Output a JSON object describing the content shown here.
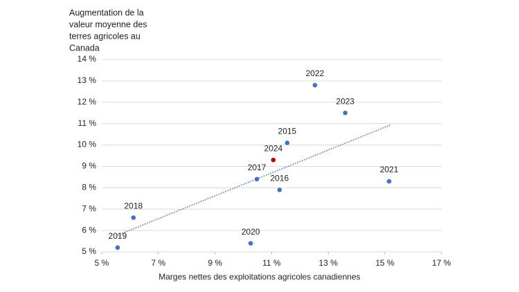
{
  "chart_data": {
    "type": "scatter",
    "ylabel": [
      "Augmentation de la",
      "valeur moyenne des",
      "terres agricoles au",
      "Canada"
    ],
    "xlabel": "Marges nettes des exploitations agricoles canadiennes",
    "x": [
      5.56,
      6.12,
      10.26,
      10.48,
      11.28,
      11.06,
      11.55,
      12.53,
      13.6,
      15.15
    ],
    "y": [
      5.2,
      6.6,
      5.4,
      8.4,
      7.9,
      9.3,
      10.1,
      12.8,
      11.5,
      8.3
    ],
    "labels": [
      "2019",
      "2018",
      "2020",
      "2017",
      "2016",
      "2024",
      "2015",
      "2022",
      "2023",
      "2021"
    ],
    "colors": [
      "#4472c4",
      "#4472c4",
      "#4472c4",
      "#4472c4",
      "#4472c4",
      "#c00000",
      "#4472c4",
      "#4472c4",
      "#4472c4",
      "#4472c4"
    ],
    "trendline": {
      "x": [
        5.56,
        15.22
      ],
      "y": [
        5.78,
        10.95
      ],
      "color": "#4472c4"
    },
    "xlim": [
      5,
      17
    ],
    "xticks": [
      {
        "value": 5,
        "label": "5 %"
      },
      {
        "value": 7,
        "label": "7 %"
      },
      {
        "value": 9,
        "label": "9 %"
      },
      {
        "value": 11,
        "label": "11 %"
      },
      {
        "value": 13,
        "label": "13 %"
      },
      {
        "value": 15,
        "label": "15 %"
      },
      {
        "value": 17,
        "label": "17 %"
      }
    ],
    "ylim": [
      5,
      14
    ],
    "yticks": [
      {
        "value": 5,
        "label": "5 %"
      },
      {
        "value": 6,
        "label": "6 %"
      },
      {
        "value": 7,
        "label": "7 %"
      },
      {
        "value": 8,
        "label": "8 %"
      },
      {
        "value": 9,
        "label": "9 %"
      },
      {
        "value": 10,
        "label": "10 %"
      },
      {
        "value": 11,
        "label": "11 %"
      },
      {
        "value": 12,
        "label": "12 %"
      },
      {
        "value": 13,
        "label": "13 %"
      },
      {
        "value": 14,
        "label": "14 %"
      }
    ],
    "grid": true
  }
}
